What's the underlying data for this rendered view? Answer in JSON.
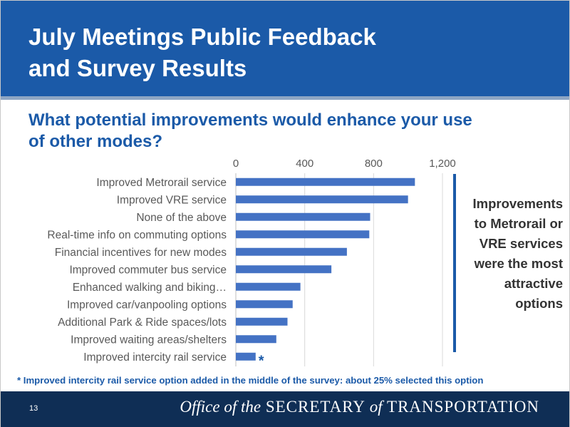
{
  "slide": {
    "title_line1": "July Meetings Public Feedback",
    "title_line2": "and Survey Results",
    "question_line1": "What potential improvements would enhance your use",
    "question_line2": "of other modes?",
    "callout_lines": [
      "Improvements",
      "to Metrorail or",
      "VRE services",
      "were the most",
      "attractive",
      "options"
    ],
    "footnote": "* Improved intercity rail service option added in the middle of the survey: about 25% selected this option",
    "page_number": "13",
    "footer_office_of": "Office of the",
    "footer_secretary": "SECRETARY",
    "footer_of": "of",
    "footer_transportation": "TRANSPORTATION"
  },
  "colors": {
    "brand_blue": "#1b5aa8",
    "bar_blue": "#4472c4",
    "footer_navy": "#0f2e55",
    "stripe": "#8ea6c4"
  },
  "chart_data": {
    "type": "bar",
    "orientation": "horizontal",
    "categories": [
      "Improved Metrorail service",
      "Improved VRE service",
      "None of the above",
      "Real-time info on commuting options",
      "Financial incentives for new modes",
      "Improved commuter bus service",
      "Enhanced walking and biking…",
      "Improved car/vanpooling options",
      "Additional Park & Ride spaces/lots",
      "Improved waiting areas/shelters",
      "Improved intercity rail service"
    ],
    "values": [
      1040,
      1000,
      780,
      775,
      645,
      555,
      375,
      330,
      300,
      235,
      115
    ],
    "xlim": [
      0,
      1200
    ],
    "ticks": [
      0,
      400,
      800,
      1200
    ],
    "tick_labels": [
      "0",
      "400",
      "800",
      "1,200"
    ],
    "grid": "vertical",
    "annotations": [
      {
        "category": "Improved intercity rail service",
        "text": "*"
      }
    ]
  }
}
